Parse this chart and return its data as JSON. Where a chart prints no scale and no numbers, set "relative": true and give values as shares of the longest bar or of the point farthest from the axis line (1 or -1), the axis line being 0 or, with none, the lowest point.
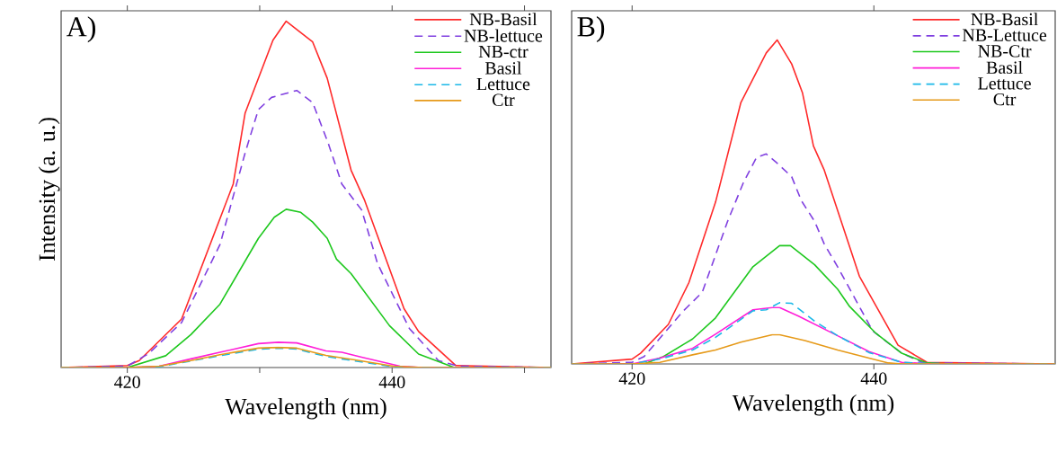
{
  "chart_data": [
    {
      "type": "line",
      "annotations": [
        "A)"
      ],
      "xlabel": "Wavelength (nm)",
      "ylabel": "Intensity (a. u.)",
      "relative": true,
      "xlim": [
        415,
        452
      ],
      "xticks": [
        420,
        {
          "value": 430,
          "label": null
        },
        440,
        {
          "value": 450,
          "label": null
        }
      ],
      "legend": "top right",
      "series": [
        {
          "name": "NB-Basil",
          "color": "#ff2a2a",
          "line_style": "solid",
          "x": [
            415,
            420,
            420.9,
            424.1,
            428,
            428.9,
            431,
            432,
            434,
            435.1,
            436.9,
            437.9,
            440.9,
            442,
            444.8,
            452
          ],
          "values": [
            0,
            0.006,
            0.02,
            0.14,
            0.53,
            0.735,
            0.945,
            1,
            0.94,
            0.835,
            0.57,
            0.485,
            0.17,
            0.104,
            0.006,
            0
          ]
        },
        {
          "name": "NB-lettuce",
          "color": "#8040e0",
          "line_style": "dashed",
          "x": [
            415,
            420,
            421.6,
            424.1,
            427,
            428.9,
            429.9,
            430.9,
            432.8,
            434,
            435.2,
            436.2,
            437.7,
            438.9,
            441.3,
            443.5,
            445,
            452
          ],
          "values": [
            0,
            0.004,
            0.04,
            0.13,
            0.355,
            0.62,
            0.745,
            0.78,
            0.8,
            0.765,
            0.645,
            0.53,
            0.455,
            0.3,
            0.113,
            0.02,
            0.004,
            0
          ]
        },
        {
          "name": "NB-ctr",
          "color": "#1ec81e",
          "line_style": "solid",
          "x": [
            415,
            420,
            422.9,
            424.8,
            427,
            429.9,
            431.1,
            432,
            433.1,
            434,
            435.1,
            435.8,
            436.9,
            439.8,
            442,
            444.7,
            452
          ],
          "values": [
            0,
            0,
            0.034,
            0.095,
            0.183,
            0.373,
            0.434,
            0.457,
            0.448,
            0.42,
            0.373,
            0.313,
            0.271,
            0.121,
            0.039,
            0,
            0
          ]
        },
        {
          "name": "Basil",
          "color": "#ff1fd8",
          "line_style": "solid",
          "x": [
            415,
            420,
            422.4,
            424.8,
            427,
            429.9,
            431.4,
            432.8,
            435,
            436.2,
            437.7,
            440.6,
            442.3,
            452
          ],
          "values": [
            0,
            0,
            0.004,
            0.025,
            0.044,
            0.069,
            0.073,
            0.071,
            0.048,
            0.044,
            0.03,
            0.004,
            0,
            0
          ]
        },
        {
          "name": "Lettuce",
          "color": "#1ab8e8",
          "line_style": "dashed",
          "x": [
            415,
            420,
            422.4,
            424.8,
            427,
            429.9,
            431.4,
            432.8,
            435,
            437.2,
            440.1,
            442.3,
            452
          ],
          "values": [
            0,
            0,
            0.002,
            0.019,
            0.034,
            0.053,
            0.056,
            0.053,
            0.032,
            0.019,
            0.002,
            0,
            0
          ]
        },
        {
          "name": "Ctr",
          "color": "#e69a1a",
          "line_style": "solid",
          "x": [
            415,
            420,
            422.4,
            424.8,
            427,
            429.9,
            431.4,
            432.8,
            435,
            437.2,
            440.1,
            442.3,
            452
          ],
          "values": [
            0,
            0,
            0.004,
            0.02,
            0.037,
            0.056,
            0.058,
            0.056,
            0.035,
            0.022,
            0.004,
            0,
            0
          ]
        }
      ]
    },
    {
      "type": "line",
      "annotations": [
        "B)"
      ],
      "xlabel": "Wavelength (nm)",
      "relative": true,
      "xlim": [
        415,
        455
      ],
      "xticks": [
        420,
        440
      ],
      "legend": "top right",
      "series": [
        {
          "name": "NB-Basil",
          "color": "#ff2a2a",
          "line_style": "solid",
          "x": [
            415,
            420,
            420.7,
            423,
            424.7,
            426.9,
            429,
            431.1,
            432,
            433.2,
            434.1,
            435,
            435.9,
            438.8,
            442,
            444.4,
            455
          ],
          "values": [
            0,
            0.015,
            0.033,
            0.122,
            0.251,
            0.499,
            0.807,
            0.96,
            1,
            0.926,
            0.836,
            0.673,
            0.598,
            0.271,
            0.058,
            0.005,
            0
          ]
        },
        {
          "name": "NB-Lettuce",
          "color": "#8040e0",
          "line_style": "dashed",
          "x": [
            415,
            420,
            421,
            424.2,
            425.8,
            427.9,
            429.2,
            430.3,
            431.1,
            431.9,
            433.2,
            434,
            435.1,
            435.9,
            437,
            439.9,
            442.3,
            444.1,
            455
          ],
          "values": [
            0,
            0.005,
            0.023,
            0.162,
            0.221,
            0.44,
            0.559,
            0.638,
            0.648,
            0.623,
            0.578,
            0.504,
            0.44,
            0.37,
            0.3,
            0.102,
            0.033,
            0.003,
            0
          ]
        },
        {
          "name": "NB-Ctr",
          "color": "#1ec81e",
          "line_style": "solid",
          "x": [
            415,
            421,
            422.6,
            425,
            426.9,
            430,
            432.2,
            433.1,
            435.1,
            437,
            438,
            440.1,
            442.3,
            444.4,
            446.2,
            455
          ],
          "values": [
            0,
            0,
            0.023,
            0.077,
            0.142,
            0.3,
            0.365,
            0.365,
            0.306,
            0.231,
            0.177,
            0.097,
            0.033,
            0.003,
            0,
            0
          ]
        },
        {
          "name": "Basil",
          "color": "#ff1fd8",
          "line_style": "solid",
          "x": [
            415,
            420,
            422.3,
            425,
            426.9,
            430,
            431.6,
            432.2,
            433.8,
            437,
            439.6,
            442.3,
            444.9,
            455
          ],
          "values": [
            0,
            0,
            0.018,
            0.048,
            0.092,
            0.167,
            0.174,
            0.174,
            0.147,
            0.087,
            0.038,
            0.005,
            0,
            0
          ]
        },
        {
          "name": "Lettuce",
          "color": "#1ab8e8",
          "line_style": "dashed",
          "x": [
            415,
            420,
            422.3,
            425,
            426.9,
            430,
            431.1,
            432.2,
            433.2,
            435.1,
            437,
            439.6,
            442.3,
            444.9,
            455
          ],
          "values": [
            0,
            0,
            0.015,
            0.043,
            0.082,
            0.164,
            0.167,
            0.189,
            0.187,
            0.132,
            0.087,
            0.035,
            0.005,
            0,
            0
          ]
        },
        {
          "name": "Ctr",
          "color": "#e69a1a",
          "line_style": "solid",
          "x": [
            415,
            420,
            422.3,
            425,
            426.9,
            429,
            431.6,
            432.2,
            434.3,
            437,
            439.6,
            441.2,
            442.3,
            455
          ],
          "values": [
            0,
            0,
            0.005,
            0.028,
            0.043,
            0.067,
            0.09,
            0.09,
            0.072,
            0.043,
            0.018,
            0.003,
            0,
            0
          ]
        }
      ]
    }
  ]
}
